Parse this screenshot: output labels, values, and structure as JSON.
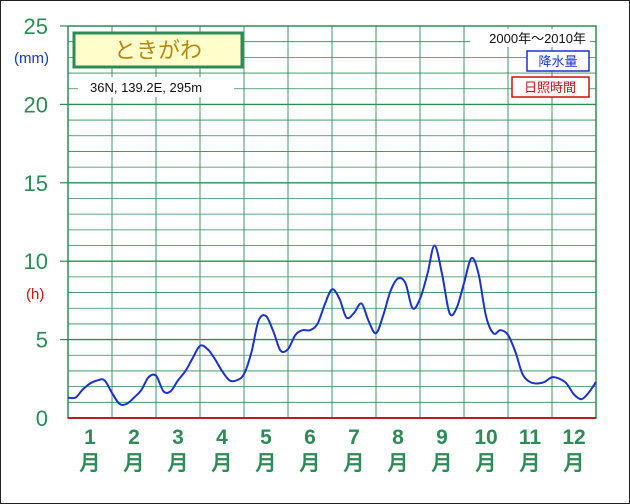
{
  "chart_data": {
    "type": "line",
    "title": "ときがわ",
    "location": "36N, 139.2E, 295m",
    "period": "2000年〜2010年",
    "legend": [
      {
        "name": "降水量",
        "color": "#1a33cc"
      },
      {
        "name": "日照時間",
        "color": "#cc1111"
      }
    ],
    "y_unit_top": "(mm)",
    "y_unit_mid": "(h)",
    "ylim": [
      0,
      25
    ],
    "y_ticks": [
      0,
      5,
      10,
      15,
      20,
      25
    ],
    "months": [
      {
        "num": "1",
        "suffix": "月"
      },
      {
        "num": "2",
        "suffix": "月"
      },
      {
        "num": "3",
        "suffix": "月"
      },
      {
        "num": "4",
        "suffix": "月"
      },
      {
        "num": "5",
        "suffix": "月"
      },
      {
        "num": "6",
        "suffix": "月"
      },
      {
        "num": "7",
        "suffix": "月"
      },
      {
        "num": "8",
        "suffix": "月"
      },
      {
        "num": "9",
        "suffix": "月"
      },
      {
        "num": "10",
        "suffix": "月"
      },
      {
        "num": "11",
        "suffix": "月"
      },
      {
        "num": "12",
        "suffix": "月"
      }
    ],
    "series": [
      {
        "name": "降水量",
        "color": "#1a33cc",
        "x": [
          0.0,
          0.17,
          0.33,
          0.5,
          0.67,
          0.83,
          1.0,
          1.17,
          1.33,
          1.5,
          1.67,
          1.83,
          2.0,
          2.17,
          2.33,
          2.5,
          2.67,
          2.83,
          3.0,
          3.17,
          3.33,
          3.5,
          3.67,
          3.83,
          4.0,
          4.17,
          4.33,
          4.5,
          4.67,
          4.83,
          5.0,
          5.17,
          5.33,
          5.5,
          5.67,
          5.83,
          6.0,
          6.17,
          6.33,
          6.5,
          6.67,
          6.83,
          7.0,
          7.17,
          7.33,
          7.5,
          7.67,
          7.83,
          8.0,
          8.17,
          8.33,
          8.5,
          8.67,
          8.83,
          9.0,
          9.17,
          9.33,
          9.5,
          9.67,
          9.83,
          10.0,
          10.17,
          10.33,
          10.5,
          10.67,
          10.83,
          11.0,
          11.17,
          11.33,
          11.5,
          11.67,
          11.83,
          12.0
        ],
        "y": [
          1.3,
          1.3,
          1.8,
          2.2,
          2.4,
          2.4,
          1.6,
          0.9,
          0.9,
          1.3,
          1.8,
          2.6,
          2.7,
          1.7,
          1.7,
          2.4,
          3.0,
          3.8,
          4.6,
          4.4,
          3.8,
          3.0,
          2.4,
          2.4,
          2.8,
          4.2,
          6.2,
          6.5,
          5.5,
          4.3,
          4.4,
          5.3,
          5.6,
          5.6,
          6.0,
          7.2,
          8.2,
          7.6,
          6.4,
          6.7,
          7.3,
          6.2,
          5.4,
          6.6,
          8.1,
          8.9,
          8.6,
          7.0,
          7.6,
          9.2,
          11.0,
          9.2,
          6.7,
          7.0,
          8.6,
          10.2,
          9.2,
          6.5,
          5.4,
          5.6,
          5.3,
          4.2,
          2.8,
          2.3,
          2.2,
          2.3,
          2.6,
          2.5,
          2.2,
          1.5,
          1.2,
          1.6,
          2.3
        ]
      },
      {
        "name": "日照時間",
        "color": "#cc1111",
        "x": [],
        "y": []
      }
    ],
    "grid": true
  }
}
